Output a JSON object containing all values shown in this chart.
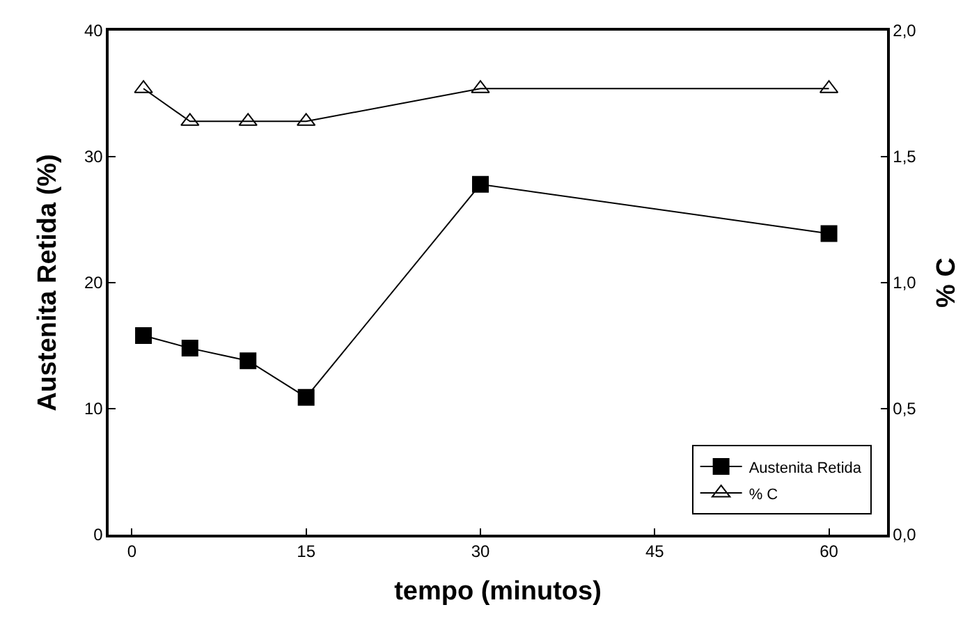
{
  "chart_data": {
    "type": "line",
    "xlabel": "tempo (minutos)",
    "ylabel": "Austenita Retida (%)",
    "y2label": "% C",
    "x": [
      1,
      5,
      10,
      15,
      30,
      60
    ],
    "series": [
      {
        "name": "Austenita Retida",
        "color": "#000000",
        "marker": "square",
        "values": [
          15.8,
          14.8,
          13.8,
          10.9,
          27.8,
          23.9
        ]
      },
      {
        "name": "% C",
        "color": "#000000",
        "marker": "triangle",
        "axis": "y2",
        "values": [
          1.77,
          1.64,
          1.64,
          1.64,
          1.77,
          1.77
        ]
      }
    ],
    "xlim": [
      -2,
      65
    ],
    "xticks": [
      0,
      15,
      30,
      45,
      60
    ],
    "ylim": [
      0,
      40
    ],
    "yticks": [
      0,
      10,
      20,
      30,
      40
    ],
    "y2lim": [
      0,
      2.0
    ],
    "y2ticks": [
      {
        "value": 0,
        "label": "0,0"
      },
      {
        "value": 0.5,
        "label": "0,5"
      },
      {
        "value": 1.0,
        "label": "1,0"
      },
      {
        "value": 1.5,
        "label": "1,5"
      },
      {
        "value": 2.0,
        "label": "2,0"
      }
    ],
    "legend": "bottom right"
  }
}
